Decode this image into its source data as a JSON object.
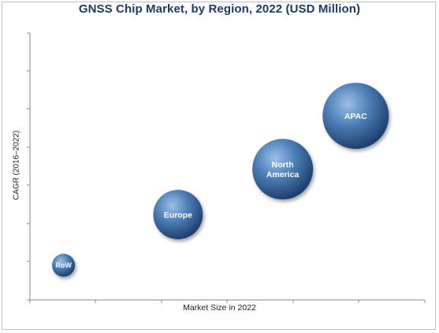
{
  "title": "GNSS Chip Market, by Region, 2022 (USD Million)",
  "chart_data": {
    "type": "scatter",
    "title": "GNSS Chip Market, by Region, 2022 (USD Million)",
    "xlabel": "Market Size in 2022",
    "ylabel": "CAGR (2016–2022)",
    "xlim": [
      0,
      10
    ],
    "ylim": [
      0,
      10
    ],
    "grid": false,
    "legend": "none",
    "points": [
      {
        "label": "RoW",
        "x": 0.85,
        "y": 1.3,
        "size": 0.12
      },
      {
        "label": "Europe",
        "x": 3.75,
        "y": 3.2,
        "size": 0.56
      },
      {
        "label": "North\nAmerica",
        "x": 6.4,
        "y": 4.9,
        "size": 0.84
      },
      {
        "label": "APAC",
        "x": 8.25,
        "y": 6.9,
        "size": 1.0
      }
    ],
    "colors": {
      "bubble_light": "#8fb3dc",
      "bubble_mid": "#3f6fa8",
      "bubble_dark": "#1e3f6e",
      "axis": "#8a8a8a",
      "title": "#1f3864"
    }
  }
}
